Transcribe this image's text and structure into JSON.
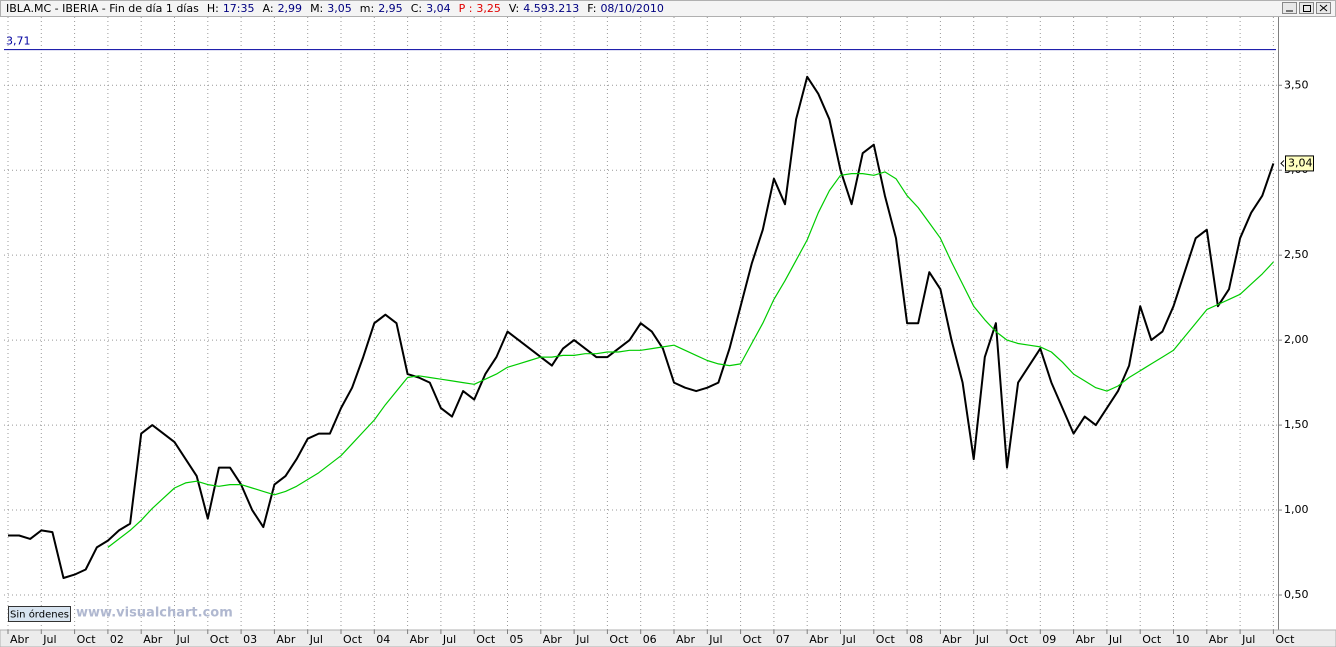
{
  "chart_data": {
    "type": "line",
    "title": "IBLA.MC - IBERIA - Fin de día 1 días",
    "info": [
      {
        "label": "H:",
        "value": "17:35",
        "color": "#000080"
      },
      {
        "label": "A:",
        "value": "2,99",
        "color": "#000080"
      },
      {
        "label": "M:",
        "value": "3,05",
        "color": "#000080"
      },
      {
        "label": "m:",
        "value": "2,95",
        "color": "#000080"
      },
      {
        "label": "C:",
        "value": "3,04",
        "color": "#000080"
      },
      {
        "label": "P :",
        "value": "3,25",
        "color": "#e00000"
      },
      {
        "label": "V:",
        "value": "4.593.213",
        "color": "#000080"
      },
      {
        "label": "F:",
        "value": "08/10/2010",
        "color": "#000080"
      }
    ],
    "watermark": "www.visualchart.com",
    "button": "Sin órdenes",
    "categories": [
      "Abr",
      null,
      null,
      "Jul",
      null,
      null,
      "Oct",
      null,
      null,
      "02",
      null,
      null,
      "Abr",
      null,
      null,
      "Jul",
      null,
      null,
      "Oct",
      null,
      null,
      "03",
      null,
      null,
      "Abr",
      null,
      null,
      "Jul",
      null,
      null,
      "Oct",
      null,
      null,
      "04",
      null,
      null,
      "Abr",
      null,
      null,
      "Jul",
      null,
      null,
      "Oct",
      null,
      null,
      "05",
      null,
      null,
      "Abr",
      null,
      null,
      "Jul",
      null,
      null,
      "Oct",
      null,
      null,
      "06",
      null,
      null,
      "Abr",
      null,
      null,
      "Jul",
      null,
      null,
      "Oct",
      null,
      null,
      "07",
      null,
      null,
      "Abr",
      null,
      null,
      "Jul",
      null,
      null,
      "Oct",
      null,
      null,
      "08",
      null,
      null,
      "Abr",
      null,
      null,
      "Jul",
      null,
      null,
      "Oct",
      null,
      null,
      "09",
      null,
      null,
      "Abr",
      null,
      null,
      "Jul",
      null,
      null,
      "Oct",
      null,
      null,
      "10",
      null,
      null,
      "Abr",
      null,
      null,
      "Jul",
      null,
      null,
      "Oct"
    ],
    "series": [
      {
        "color": "#000000",
        "values": [
          0.85,
          0.85,
          0.83,
          0.88,
          0.87,
          0.6,
          0.62,
          0.65,
          0.78,
          0.82,
          0.88,
          0.92,
          1.45,
          1.5,
          1.45,
          1.4,
          1.3,
          1.2,
          0.95,
          1.25,
          1.25,
          1.15,
          1.0,
          0.9,
          1.15,
          1.2,
          1.3,
          1.42,
          1.45,
          1.45,
          1.6,
          1.72,
          1.9,
          2.1,
          2.15,
          2.1,
          1.8,
          1.78,
          1.75,
          1.6,
          1.55,
          1.7,
          1.65,
          1.8,
          1.9,
          2.05,
          2.0,
          1.95,
          1.9,
          1.85,
          1.95,
          2.0,
          1.95,
          1.9,
          1.9,
          1.95,
          2.0,
          2.1,
          2.05,
          1.95,
          1.75,
          1.72,
          1.7,
          1.72,
          1.75,
          1.95,
          2.2,
          2.45,
          2.65,
          2.95,
          2.8,
          3.3,
          3.55,
          3.45,
          3.3,
          3.0,
          2.8,
          3.1,
          3.15,
          2.85,
          2.6,
          2.1,
          2.1,
          2.4,
          2.3,
          2.0,
          1.75,
          1.3,
          1.9,
          2.1,
          1.25,
          1.75,
          1.85,
          1.95,
          1.75,
          1.6,
          1.45,
          1.55,
          1.5,
          1.6,
          1.7,
          1.85,
          2.2,
          2.0,
          2.05,
          2.2,
          2.4,
          2.6,
          2.65,
          2.2,
          2.3,
          2.6,
          2.75,
          2.85,
          3.04
        ]
      },
      {
        "color": "#00cc00",
        "values": [
          null,
          null,
          null,
          null,
          null,
          null,
          null,
          null,
          null,
          0.78,
          0.83,
          0.88,
          0.94,
          1.01,
          1.07,
          1.13,
          1.16,
          1.17,
          1.15,
          1.14,
          1.15,
          1.15,
          1.13,
          1.11,
          1.09,
          1.11,
          1.14,
          1.18,
          1.22,
          1.27,
          1.32,
          1.39,
          1.46,
          1.53,
          1.62,
          1.7,
          1.78,
          1.79,
          1.78,
          1.77,
          1.76,
          1.75,
          1.74,
          1.77,
          1.8,
          1.84,
          1.86,
          1.88,
          1.9,
          1.9,
          1.91,
          1.91,
          1.92,
          1.92,
          1.93,
          1.93,
          1.94,
          1.94,
          1.95,
          1.96,
          1.97,
          1.94,
          1.91,
          1.88,
          1.86,
          1.85,
          1.86,
          1.98,
          2.1,
          2.24,
          2.35,
          2.47,
          2.59,
          2.75,
          2.88,
          2.97,
          2.98,
          2.98,
          2.97,
          2.99,
          2.95,
          2.85,
          2.78,
          2.69,
          2.6,
          2.46,
          2.33,
          2.2,
          2.12,
          2.05,
          2.0,
          1.98,
          1.97,
          1.96,
          1.93,
          1.87,
          1.8,
          1.76,
          1.72,
          1.7,
          1.73,
          1.78,
          1.82,
          1.86,
          1.9,
          1.94,
          2.02,
          2.1,
          2.18,
          2.21,
          2.24,
          2.27,
          2.33,
          2.39,
          2.46
        ]
      }
    ],
    "ylim": [
      0.3,
      3.89
    ],
    "yticks": [
      {
        "value": 0.5,
        "label": "0,50"
      },
      {
        "value": 1.0,
        "label": "1,00"
      },
      {
        "value": 1.5,
        "label": "1,50"
      },
      {
        "value": 2.0,
        "label": "2,00"
      },
      {
        "value": 2.5,
        "label": "2,50"
      },
      {
        "value": 3.0,
        "label": "3,00"
      },
      {
        "value": 3.5,
        "label": "3,50"
      }
    ],
    "reference_line": {
      "value": 3.71,
      "label": "3,71",
      "color": "#0000a0"
    },
    "last_price": {
      "value": 3.04,
      "label": "3,04"
    },
    "grid": true
  }
}
